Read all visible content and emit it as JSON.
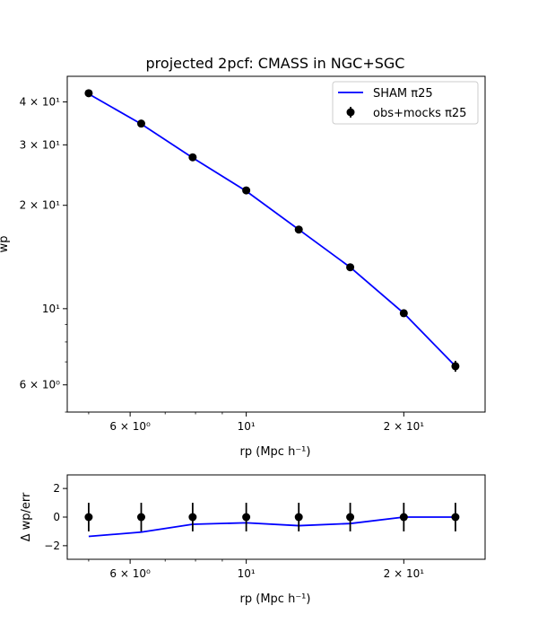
{
  "chart_data": [
    {
      "type": "line",
      "title": "projected 2pcf: CMASS in NGC+SGC",
      "xlabel": "rp (Mpc h⁻¹)",
      "ylabel": "wp",
      "xscale": "log",
      "yscale": "log",
      "xlim": [
        4.55,
        28.6
      ],
      "ylim": [
        5.0,
        47.5
      ],
      "x_ticks": [
        {
          "value": 6,
          "label": "6 × 10⁰"
        },
        {
          "value": 10,
          "label": "10¹"
        },
        {
          "value": 20,
          "label": "2 × 10¹"
        }
      ],
      "y_ticks": [
        {
          "value": 6,
          "label": "6 × 10⁰"
        },
        {
          "value": 10,
          "label": "10¹"
        },
        {
          "value": 20,
          "label": "2 × 10¹"
        },
        {
          "value": 30,
          "label": "3 × 10¹"
        },
        {
          "value": 40,
          "label": "4 × 10¹"
        }
      ],
      "legend": "top-right",
      "series": [
        {
          "name": "SHAM π25",
          "style": "line",
          "color": "#0000ff",
          "x": [
            5.0,
            6.3,
            7.9,
            10.0,
            12.6,
            15.8,
            20.0,
            25.1
          ],
          "y": [
            42.2,
            34.5,
            27.5,
            22.0,
            17.0,
            13.2,
            9.7,
            6.8
          ]
        },
        {
          "name": "obs+mocks π25",
          "style": "errorbar",
          "color": "#000000",
          "x": [
            5.0,
            6.3,
            7.9,
            10.0,
            12.6,
            15.8,
            20.0,
            25.1
          ],
          "y": [
            42.4,
            34.6,
            27.6,
            22.1,
            17.0,
            13.2,
            9.7,
            6.8
          ],
          "yerr": [
            0.5,
            0.4,
            0.3,
            0.3,
            0.2,
            0.2,
            0.15,
            0.25
          ]
        }
      ]
    },
    {
      "type": "line",
      "title": "",
      "xlabel": "rp (Mpc h⁻¹)",
      "ylabel": "Δ wp/err",
      "xscale": "log",
      "xlim": [
        4.55,
        28.6
      ],
      "ylim": [
        -2.95,
        2.95
      ],
      "x_ticks": [
        {
          "value": 6,
          "label": "6 × 10⁰"
        },
        {
          "value": 10,
          "label": "10¹"
        },
        {
          "value": 20,
          "label": "2 × 10¹"
        }
      ],
      "y_ticks": [
        {
          "value": -2,
          "label": "−2"
        },
        {
          "value": 0,
          "label": "0"
        },
        {
          "value": 2,
          "label": "2"
        }
      ],
      "series": [
        {
          "style": "line",
          "color": "#0000ff",
          "x": [
            5.0,
            6.3,
            7.9,
            10.0,
            12.6,
            15.8,
            20.0,
            25.1
          ],
          "y": [
            -1.35,
            -1.05,
            -0.5,
            -0.4,
            -0.6,
            -0.45,
            0.0,
            0.0
          ]
        },
        {
          "style": "errorbar",
          "color": "#000000",
          "x": [
            5.0,
            6.3,
            7.9,
            10.0,
            12.6,
            15.8,
            20.0,
            25.1
          ],
          "y": [
            0,
            0,
            0,
            0,
            0,
            0,
            0,
            0
          ],
          "yerr": [
            1,
            1,
            1,
            1,
            1,
            1,
            1,
            1
          ]
        }
      ]
    }
  ]
}
